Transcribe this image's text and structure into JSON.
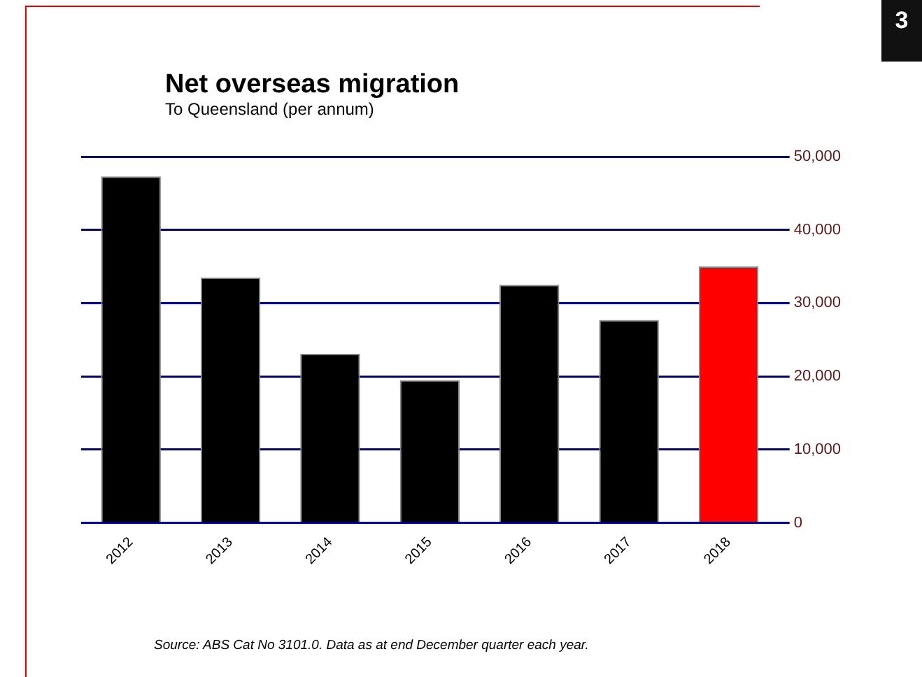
{
  "chart_data": {
    "type": "bar",
    "title": "Net overseas migration",
    "subtitle": "To Queensland (per annum)",
    "categories": [
      "2012",
      "2013",
      "2014",
      "2015",
      "2016",
      "2017",
      "2018"
    ],
    "values": [
      47300,
      33500,
      23100,
      19500,
      32500,
      27700,
      35000
    ],
    "colors": [
      "#000000",
      "#000000",
      "#000000",
      "#000000",
      "#000000",
      "#000000",
      "#ff0000"
    ],
    "ylim": [
      0,
      50000
    ],
    "yticks": [
      {
        "value": 0,
        "label": "0"
      },
      {
        "value": 10000,
        "label": "10,000"
      },
      {
        "value": 20000,
        "label": "20,000"
      },
      {
        "value": 30000,
        "label": "30,000"
      },
      {
        "value": 40000,
        "label": "40,000"
      },
      {
        "value": 50000,
        "label": "50,000"
      }
    ],
    "grid": "y",
    "legend": false,
    "annotations": [
      "Source: ABS Cat No 3101.0. Data as at end December quarter each year.",
      "3"
    ]
  }
}
